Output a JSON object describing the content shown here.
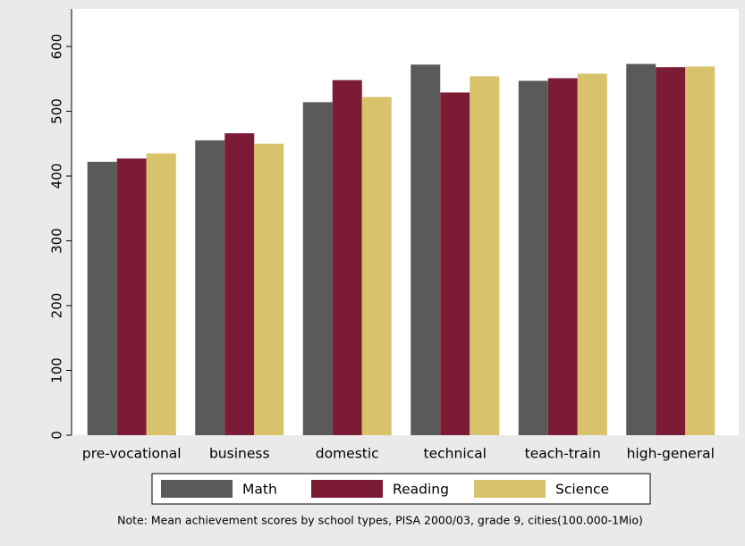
{
  "chart_data": {
    "type": "bar",
    "categories": [
      "pre-vocational",
      "business",
      "domestic",
      "technical",
      "teach-train",
      "high-general"
    ],
    "series": [
      {
        "name": "Math",
        "color": "#5a5a5a",
        "values": [
          422,
          455,
          514,
          572,
          547,
          573
        ]
      },
      {
        "name": "Reading",
        "color": "#7b1b35",
        "values": [
          427,
          466,
          548,
          529,
          551,
          568
        ]
      },
      {
        "name": "Science",
        "color": "#d8c26c",
        "values": [
          435,
          450,
          522,
          554,
          558,
          569
        ]
      }
    ],
    "ylim": [
      0,
      600
    ],
    "yticks": [
      0,
      100,
      200,
      300,
      400,
      500,
      600
    ],
    "note": "Note: Mean achievement scores by school types, PISA 2000/03, grade 9, cities(100.000-1Mio)",
    "grid": false,
    "legend": "bottom"
  }
}
